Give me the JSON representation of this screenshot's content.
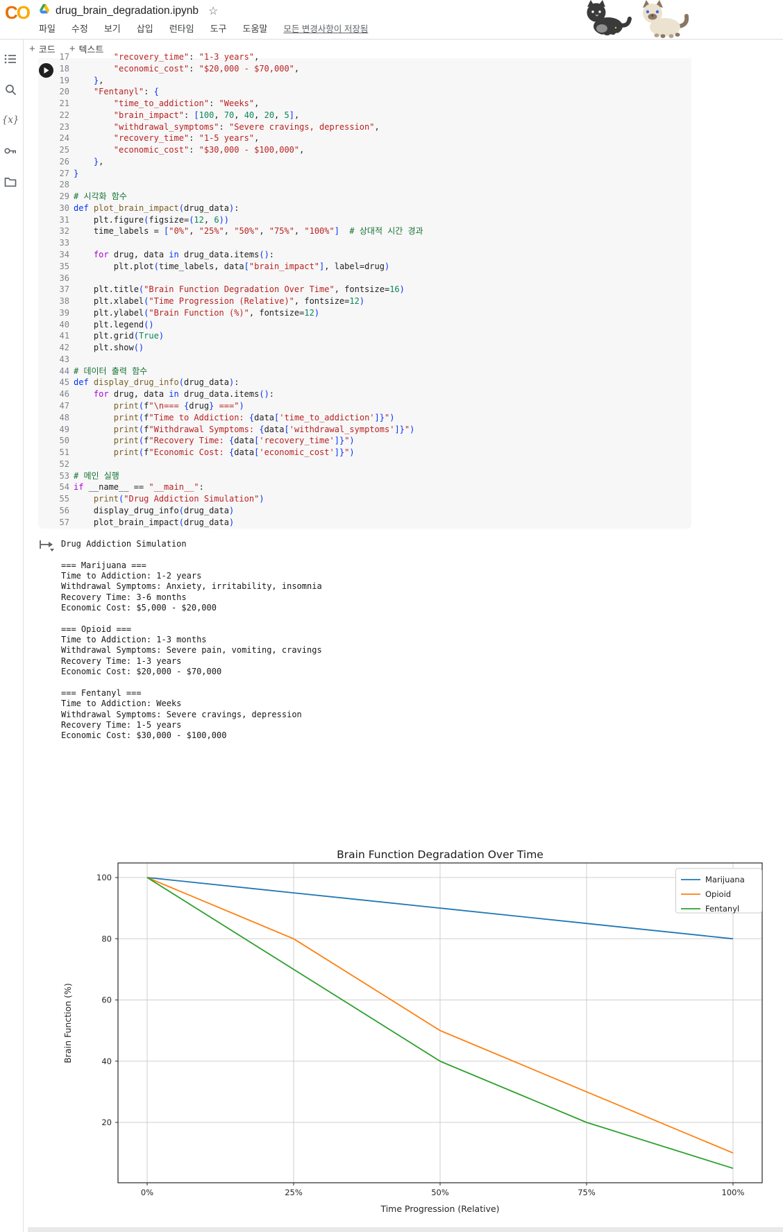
{
  "header": {
    "logo_text_1": "C",
    "logo_text_2": "O",
    "title": "drug_brain_degradation.ipynb",
    "star": "☆",
    "menu": [
      "파일",
      "수정",
      "보기",
      "삽입",
      "런타임",
      "도구",
      "도움말"
    ],
    "saved_status": "모든 변경사항이 저장됨"
  },
  "toolbar": {
    "plus": "+",
    "add_code": "코드",
    "add_text": "텍스트"
  },
  "code_cell": {
    "lines": [
      {
        "n": 17,
        "t": [
          [
            "d",
            "        "
          ],
          [
            "s",
            "\"recovery_time\""
          ],
          [
            "d",
            ": "
          ],
          [
            "s",
            "\"1-3 years\""
          ],
          [
            "d",
            ","
          ]
        ]
      },
      {
        "n": 18,
        "t": [
          [
            "d",
            "        "
          ],
          [
            "s",
            "\"economic_cost\""
          ],
          [
            "d",
            ": "
          ],
          [
            "s",
            "\"$20,000 - $70,000\""
          ],
          [
            "d",
            ","
          ]
        ]
      },
      {
        "n": 19,
        "t": [
          [
            "d",
            "    "
          ],
          [
            "b",
            "}"
          ],
          [
            "d",
            ","
          ]
        ]
      },
      {
        "n": 20,
        "t": [
          [
            "d",
            "    "
          ],
          [
            "s",
            "\"Fentanyl\""
          ],
          [
            "d",
            ": "
          ],
          [
            "b",
            "{"
          ]
        ]
      },
      {
        "n": 21,
        "t": [
          [
            "d",
            "        "
          ],
          [
            "s",
            "\"time_to_addiction\""
          ],
          [
            "d",
            ": "
          ],
          [
            "s",
            "\"Weeks\""
          ],
          [
            "d",
            ","
          ]
        ]
      },
      {
        "n": 22,
        "t": [
          [
            "d",
            "        "
          ],
          [
            "s",
            "\"brain_impact\""
          ],
          [
            "d",
            ": "
          ],
          [
            "b",
            "["
          ],
          [
            "n",
            "100"
          ],
          [
            "d",
            ", "
          ],
          [
            "n",
            "70"
          ],
          [
            "d",
            ", "
          ],
          [
            "n",
            "40"
          ],
          [
            "d",
            ", "
          ],
          [
            "n",
            "20"
          ],
          [
            "d",
            ", "
          ],
          [
            "n",
            "5"
          ],
          [
            "b",
            "]"
          ],
          [
            "d",
            ","
          ]
        ]
      },
      {
        "n": 23,
        "t": [
          [
            "d",
            "        "
          ],
          [
            "s",
            "\"withdrawal_symptoms\""
          ],
          [
            "d",
            ": "
          ],
          [
            "s",
            "\"Severe cravings, depression\""
          ],
          [
            "d",
            ","
          ]
        ]
      },
      {
        "n": 24,
        "t": [
          [
            "d",
            "        "
          ],
          [
            "s",
            "\"recovery_time\""
          ],
          [
            "d",
            ": "
          ],
          [
            "s",
            "\"1-5 years\""
          ],
          [
            "d",
            ","
          ]
        ]
      },
      {
        "n": 25,
        "t": [
          [
            "d",
            "        "
          ],
          [
            "s",
            "\"economic_cost\""
          ],
          [
            "d",
            ": "
          ],
          [
            "s",
            "\"$30,000 - $100,000\""
          ],
          [
            "d",
            ","
          ]
        ]
      },
      {
        "n": 26,
        "t": [
          [
            "d",
            "    "
          ],
          [
            "b",
            "}"
          ],
          [
            "d",
            ","
          ]
        ]
      },
      {
        "n": 27,
        "t": [
          [
            "b",
            "}"
          ]
        ]
      },
      {
        "n": 28,
        "t": []
      },
      {
        "n": 29,
        "t": [
          [
            "c",
            "# 시각화 함수"
          ]
        ]
      },
      {
        "n": 30,
        "t": [
          [
            "k",
            "def"
          ],
          [
            "d",
            " "
          ],
          [
            "f",
            "plot_brain_impact"
          ],
          [
            "b",
            "("
          ],
          [
            "d",
            "drug_data"
          ],
          [
            "b",
            ")"
          ],
          [
            "d",
            ":"
          ]
        ]
      },
      {
        "n": 31,
        "t": [
          [
            "d",
            "    plt.figure"
          ],
          [
            "b",
            "("
          ],
          [
            "d",
            "figsize="
          ],
          [
            "b",
            "("
          ],
          [
            "n",
            "12"
          ],
          [
            "d",
            ", "
          ],
          [
            "n",
            "6"
          ],
          [
            "b",
            "))"
          ]
        ]
      },
      {
        "n": 32,
        "t": [
          [
            "d",
            "    time_labels = "
          ],
          [
            "b",
            "["
          ],
          [
            "s",
            "\"0%\""
          ],
          [
            "d",
            ", "
          ],
          [
            "s",
            "\"25%\""
          ],
          [
            "d",
            ", "
          ],
          [
            "s",
            "\"50%\""
          ],
          [
            "d",
            ", "
          ],
          [
            "s",
            "\"75%\""
          ],
          [
            "d",
            ", "
          ],
          [
            "s",
            "\"100%\""
          ],
          [
            "b",
            "]"
          ],
          [
            "d",
            "  "
          ],
          [
            "c",
            "# 상대적 시간 경과"
          ]
        ]
      },
      {
        "n": 33,
        "t": []
      },
      {
        "n": 34,
        "t": [
          [
            "d",
            "    "
          ],
          [
            "kc",
            "for"
          ],
          [
            "d",
            " drug, data "
          ],
          [
            "k",
            "in"
          ],
          [
            "d",
            " drug_data.items"
          ],
          [
            "b",
            "()"
          ],
          [
            "d",
            ":"
          ]
        ]
      },
      {
        "n": 35,
        "t": [
          [
            "d",
            "        plt.plot"
          ],
          [
            "b",
            "("
          ],
          [
            "d",
            "time_labels, data"
          ],
          [
            "b",
            "["
          ],
          [
            "s",
            "\"brain_impact\""
          ],
          [
            "b",
            "]"
          ],
          [
            "d",
            ", label=drug"
          ],
          [
            "b",
            ")"
          ]
        ]
      },
      {
        "n": 36,
        "t": []
      },
      {
        "n": 37,
        "t": [
          [
            "d",
            "    plt.title"
          ],
          [
            "b",
            "("
          ],
          [
            "s",
            "\"Brain Function Degradation Over Time\""
          ],
          [
            "d",
            ", fontsize="
          ],
          [
            "n",
            "16"
          ],
          [
            "b",
            ")"
          ]
        ]
      },
      {
        "n": 38,
        "t": [
          [
            "d",
            "    plt.xlabel"
          ],
          [
            "b",
            "("
          ],
          [
            "s",
            "\"Time Progression (Relative)\""
          ],
          [
            "d",
            ", fontsize="
          ],
          [
            "n",
            "12"
          ],
          [
            "b",
            ")"
          ]
        ]
      },
      {
        "n": 39,
        "t": [
          [
            "d",
            "    plt.ylabel"
          ],
          [
            "b",
            "("
          ],
          [
            "s",
            "\"Brain Function (%)\""
          ],
          [
            "d",
            ", fontsize="
          ],
          [
            "n",
            "12"
          ],
          [
            "b",
            ")"
          ]
        ]
      },
      {
        "n": 40,
        "t": [
          [
            "d",
            "    plt.legend"
          ],
          [
            "b",
            "()"
          ]
        ]
      },
      {
        "n": 41,
        "t": [
          [
            "d",
            "    plt.grid"
          ],
          [
            "b",
            "("
          ],
          [
            "n",
            "True"
          ],
          [
            "b",
            ")"
          ]
        ]
      },
      {
        "n": 42,
        "t": [
          [
            "d",
            "    plt.show"
          ],
          [
            "b",
            "()"
          ]
        ]
      },
      {
        "n": 43,
        "t": []
      },
      {
        "n": 44,
        "t": [
          [
            "c",
            "# 데이터 출력 함수"
          ]
        ]
      },
      {
        "n": 45,
        "t": [
          [
            "k",
            "def"
          ],
          [
            "d",
            " "
          ],
          [
            "f",
            "display_drug_info"
          ],
          [
            "b",
            "("
          ],
          [
            "d",
            "drug_data"
          ],
          [
            "b",
            ")"
          ],
          [
            "d",
            ":"
          ]
        ]
      },
      {
        "n": 46,
        "t": [
          [
            "d",
            "    "
          ],
          [
            "kc",
            "for"
          ],
          [
            "d",
            " drug, data "
          ],
          [
            "k",
            "in"
          ],
          [
            "d",
            " drug_data.items"
          ],
          [
            "b",
            "()"
          ],
          [
            "d",
            ":"
          ]
        ]
      },
      {
        "n": 47,
        "t": [
          [
            "d",
            "        "
          ],
          [
            "f",
            "print"
          ],
          [
            "b",
            "("
          ],
          [
            "d",
            "f"
          ],
          [
            "s",
            "\"\\n=== "
          ],
          [
            "b",
            "{"
          ],
          [
            "d",
            "drug"
          ],
          [
            "b",
            "}"
          ],
          [
            "s",
            " ===\""
          ],
          [
            "b",
            ")"
          ]
        ]
      },
      {
        "n": 48,
        "t": [
          [
            "d",
            "        "
          ],
          [
            "f",
            "print"
          ],
          [
            "b",
            "("
          ],
          [
            "d",
            "f"
          ],
          [
            "s",
            "\"Time to Addiction: "
          ],
          [
            "b",
            "{"
          ],
          [
            "d",
            "data"
          ],
          [
            "b",
            "["
          ],
          [
            "s",
            "'time_to_addiction'"
          ],
          [
            "b",
            "]}"
          ],
          [
            "s",
            "\""
          ],
          [
            "b",
            ")"
          ]
        ]
      },
      {
        "n": 49,
        "t": [
          [
            "d",
            "        "
          ],
          [
            "f",
            "print"
          ],
          [
            "b",
            "("
          ],
          [
            "d",
            "f"
          ],
          [
            "s",
            "\"Withdrawal Symptoms: "
          ],
          [
            "b",
            "{"
          ],
          [
            "d",
            "data"
          ],
          [
            "b",
            "["
          ],
          [
            "s",
            "'withdrawal_symptoms'"
          ],
          [
            "b",
            "]}"
          ],
          [
            "s",
            "\""
          ],
          [
            "b",
            ")"
          ]
        ]
      },
      {
        "n": 50,
        "t": [
          [
            "d",
            "        "
          ],
          [
            "f",
            "print"
          ],
          [
            "b",
            "("
          ],
          [
            "d",
            "f"
          ],
          [
            "s",
            "\"Recovery Time: "
          ],
          [
            "b",
            "{"
          ],
          [
            "d",
            "data"
          ],
          [
            "b",
            "["
          ],
          [
            "s",
            "'recovery_time'"
          ],
          [
            "b",
            "]}"
          ],
          [
            "s",
            "\""
          ],
          [
            "b",
            ")"
          ]
        ]
      },
      {
        "n": 51,
        "t": [
          [
            "d",
            "        "
          ],
          [
            "f",
            "print"
          ],
          [
            "b",
            "("
          ],
          [
            "d",
            "f"
          ],
          [
            "s",
            "\"Economic Cost: "
          ],
          [
            "b",
            "{"
          ],
          [
            "d",
            "data"
          ],
          [
            "b",
            "["
          ],
          [
            "s",
            "'economic_cost'"
          ],
          [
            "b",
            "]}"
          ],
          [
            "s",
            "\""
          ],
          [
            "b",
            ")"
          ]
        ]
      },
      {
        "n": 52,
        "t": []
      },
      {
        "n": 53,
        "t": [
          [
            "c",
            "# 메인 실행"
          ]
        ]
      },
      {
        "n": 54,
        "t": [
          [
            "kc",
            "if"
          ],
          [
            "d",
            " __name__ == "
          ],
          [
            "s",
            "\"__main__\""
          ],
          [
            "d",
            ":"
          ]
        ]
      },
      {
        "n": 55,
        "t": [
          [
            "d",
            "    "
          ],
          [
            "f",
            "print"
          ],
          [
            "b",
            "("
          ],
          [
            "s",
            "\"Drug Addiction Simulation\""
          ],
          [
            "b",
            ")"
          ]
        ]
      },
      {
        "n": 56,
        "t": [
          [
            "d",
            "    display_drug_info"
          ],
          [
            "b",
            "("
          ],
          [
            "d",
            "drug_data"
          ],
          [
            "b",
            ")"
          ]
        ]
      },
      {
        "n": 57,
        "t": [
          [
            "d",
            "    plot_brain_impact"
          ],
          [
            "b",
            "("
          ],
          [
            "d",
            "drug_data"
          ],
          [
            "b",
            ")"
          ]
        ]
      }
    ]
  },
  "output": {
    "lines": [
      "Drug Addiction Simulation",
      "",
      "=== Marijuana ===",
      "Time to Addiction: 1-2 years",
      "Withdrawal Symptoms: Anxiety, irritability, insomnia",
      "Recovery Time: 3-6 months",
      "Economic Cost: $5,000 - $20,000",
      "",
      "=== Opioid ===",
      "Time to Addiction: 1-3 months",
      "Withdrawal Symptoms: Severe pain, vomiting, cravings",
      "Recovery Time: 1-3 years",
      "Economic Cost: $20,000 - $70,000",
      "",
      "=== Fentanyl ===",
      "Time to Addiction: Weeks",
      "Withdrawal Symptoms: Severe cravings, depression",
      "Recovery Time: 1-5 years",
      "Economic Cost: $30,000 - $100,000"
    ]
  },
  "chart_data": {
    "type": "line",
    "title": "Brain Function Degradation Over Time",
    "xlabel": "Time Progression (Relative)",
    "ylabel": "Brain Function (%)",
    "categories": [
      "0%",
      "25%",
      "50%",
      "75%",
      "100%"
    ],
    "series": [
      {
        "name": "Marijuana",
        "color": "#1f77b4",
        "values": [
          100,
          95,
          90,
          85,
          80
        ]
      },
      {
        "name": "Opioid",
        "color": "#ff7f0e",
        "values": [
          100,
          80,
          50,
          30,
          10
        ]
      },
      {
        "name": "Fentanyl",
        "color": "#2ca02c",
        "values": [
          100,
          70,
          40,
          20,
          5
        ]
      }
    ],
    "yticks": [
      20,
      40,
      60,
      80,
      100
    ],
    "ylim": [
      0.25,
      104.75
    ],
    "grid": true,
    "legend_position": "upper right"
  }
}
